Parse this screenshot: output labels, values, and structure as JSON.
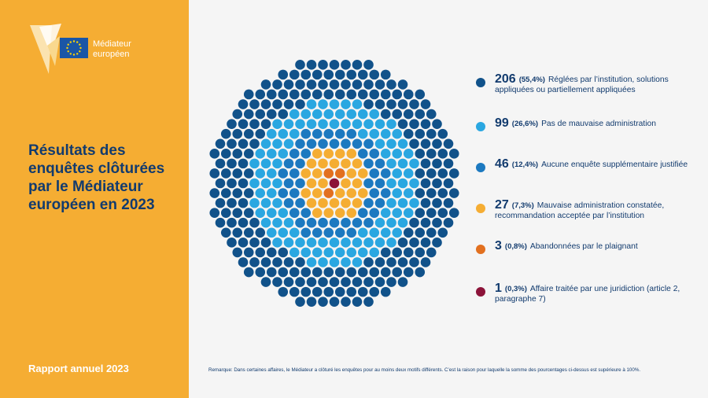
{
  "branding": {
    "line1": "Médiateur",
    "line2": "européen",
    "colors": {
      "sidebar": "#f5ad33",
      "title": "#123b6e",
      "eu_flag": "#1a56a6",
      "eu_stars": "#ffd500"
    }
  },
  "sidebar": {
    "title": "Résultats des enquêtes clôturées par le Médiateur européen en 2023",
    "footer": "Rapport annuel 2023"
  },
  "chart_data": {
    "type": "dot-circle",
    "title": "Résultats des enquêtes clôturées par le Médiateur européen en 2023",
    "series": [
      {
        "value": 206,
        "percent": "(55,4%)",
        "label": "Réglées par l’institution, solutions appliquées ou partiellement appliquées",
        "color": "#11528a"
      },
      {
        "value": 99,
        "percent": "(26,6%)",
        "label": "Pas de mauvaise administration",
        "color": "#2aa7e1"
      },
      {
        "value": 46,
        "percent": "(12,4%)",
        "label": "Aucune enquête supplémentaire justifiée",
        "color": "#1c79c0"
      },
      {
        "value": 27,
        "percent": "(7,3%)",
        "label": "Mauvaise administration constatée, recommandation acceptée par l’institution",
        "color": "#f5ad33"
      },
      {
        "value": 3,
        "percent": "(0,8%)",
        "label": "Abandonnées par le plaignant",
        "color": "#e2701f"
      },
      {
        "value": 1,
        "percent": "(0,3%)",
        "label": "Affaire traitée par une juridiction (article 2, paragraphe 7)",
        "color": "#8c1339"
      }
    ]
  },
  "remark": "Remarque: Dans certaines affaires, le Médiateur a clôturé les enquêtes pour au moins deux motifs différents. C’est la raison pour laquelle la somme des pourcentages ci-dessus est supérieure à 100%."
}
